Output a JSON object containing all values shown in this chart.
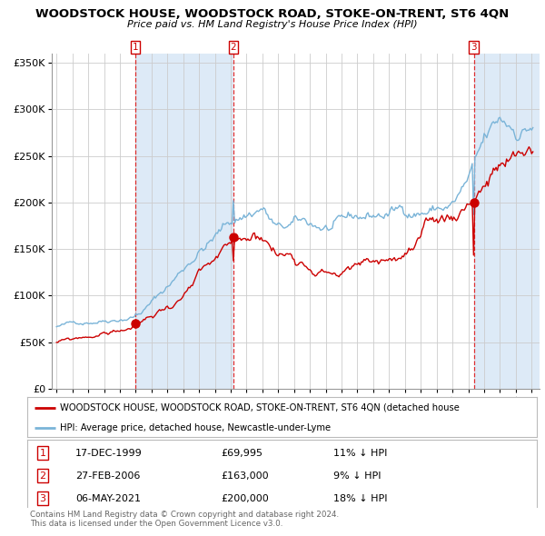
{
  "title": "WOODSTOCK HOUSE, WOODSTOCK ROAD, STOKE-ON-TRENT, ST6 4QN",
  "subtitle": "Price paid vs. HM Land Registry's House Price Index (HPI)",
  "legend_line1": "WOODSTOCK HOUSE, WOODSTOCK ROAD, STOKE-ON-TRENT, ST6 4QN (detached house",
  "legend_line2": "HPI: Average price, detached house, Newcastle-under-Lyme",
  "sale1_date": "17-DEC-1999",
  "sale1_price": 69995,
  "sale1_price_str": "£69,995",
  "sale1_pct": "11% ↓ HPI",
  "sale2_date": "27-FEB-2006",
  "sale2_price": 163000,
  "sale2_price_str": "£163,000",
  "sale2_pct": "9% ↓ HPI",
  "sale3_date": "06-MAY-2021",
  "sale3_price": 200000,
  "sale3_price_str": "£200,000",
  "sale3_pct": "18% ↓ HPI",
  "sale1_year": 1999.96,
  "sale2_year": 2006.16,
  "sale3_year": 2021.35,
  "hpi_color": "#7ab4d8",
  "price_color": "#cc0000",
  "sale_marker_color": "#cc0000",
  "shade_color": "#ddeaf7",
  "grid_color": "#cccccc",
  "bg_color": "#ffffff",
  "ylim": [
    0,
    360000
  ],
  "yticks": [
    0,
    50000,
    100000,
    150000,
    200000,
    250000,
    300000,
    350000
  ],
  "ytick_labels": [
    "£0",
    "£50K",
    "£100K",
    "£150K",
    "£200K",
    "£250K",
    "£300K",
    "£350K"
  ],
  "xlim_start": 1994.7,
  "xlim_end": 2025.5,
  "footer": "Contains HM Land Registry data © Crown copyright and database right 2024.\nThis data is licensed under the Open Government Licence v3.0."
}
